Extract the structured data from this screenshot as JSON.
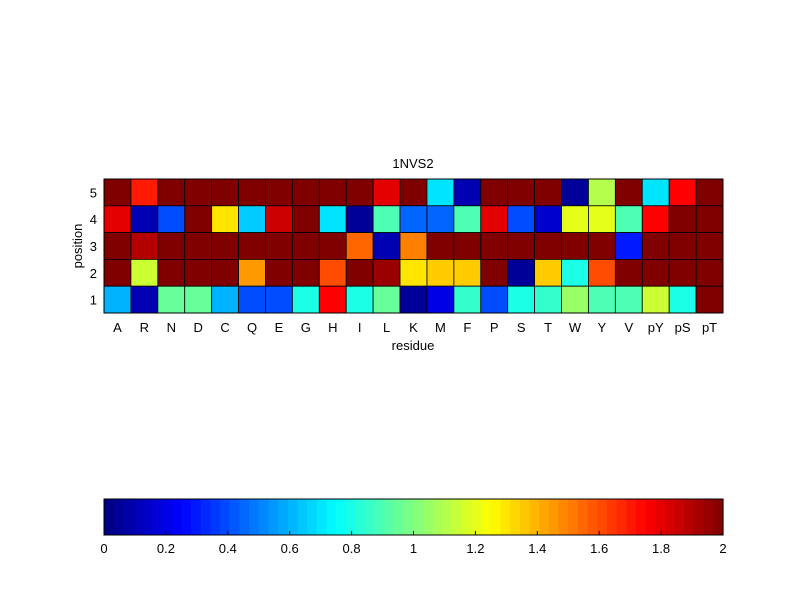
{
  "chart_data": {
    "type": "heatmap",
    "title": "1NVS2",
    "xlabel": "residue",
    "ylabel": "position",
    "x_categories": [
      "A",
      "R",
      "N",
      "D",
      "C",
      "Q",
      "E",
      "G",
      "H",
      "I",
      "L",
      "K",
      "M",
      "F",
      "P",
      "S",
      "T",
      "W",
      "Y",
      "V",
      "pY",
      "pS",
      "pT"
    ],
    "y_categories": [
      "5",
      "4",
      "3",
      "2",
      "1"
    ],
    "values": [
      [
        2.0,
        1.7,
        2.0,
        2.0,
        2.0,
        2.0,
        2.0,
        2.0,
        2.0,
        2.0,
        1.8,
        2.0,
        0.7,
        0.1,
        2.0,
        2.0,
        2.0,
        0.05,
        1.1,
        2.0,
        0.7,
        1.75,
        2.0
      ],
      [
        1.8,
        0.1,
        0.4,
        2.0,
        1.3,
        0.65,
        1.85,
        2.0,
        0.7,
        0.05,
        0.9,
        0.45,
        0.45,
        0.9,
        1.8,
        0.4,
        0.15,
        1.2,
        1.2,
        0.9,
        1.75,
        2.0,
        2.0
      ],
      [
        2.0,
        1.9,
        2.0,
        2.0,
        2.0,
        2.0,
        2.0,
        2.0,
        2.0,
        1.55,
        0.1,
        1.5,
        2.0,
        2.0,
        2.0,
        2.0,
        2.0,
        2.0,
        2.0,
        0.3,
        2.0,
        2.0,
        2.0
      ],
      [
        2.0,
        1.15,
        2.0,
        2.0,
        2.0,
        1.45,
        2.0,
        2.0,
        1.6,
        2.0,
        1.95,
        1.3,
        1.35,
        1.35,
        2.0,
        0.05,
        1.35,
        0.8,
        1.6,
        2.0,
        2.0,
        2.0,
        2.0
      ],
      [
        0.6,
        0.1,
        0.95,
        0.95,
        0.6,
        0.4,
        0.4,
        0.8,
        1.75,
        0.8,
        0.95,
        0.05,
        0.2,
        0.85,
        0.4,
        0.8,
        0.85,
        1.05,
        0.9,
        0.9,
        1.15,
        0.8,
        2.0
      ]
    ],
    "colormap": "jet",
    "clim": [
      0,
      2
    ],
    "colorbar": {
      "orientation": "horizontal",
      "placement": "bottom",
      "ticks": [
        "0",
        "0.2",
        "0.4",
        "0.6",
        "0.8",
        "1",
        "1.2",
        "1.4",
        "1.6",
        "1.8",
        "2"
      ]
    },
    "grid": true
  }
}
